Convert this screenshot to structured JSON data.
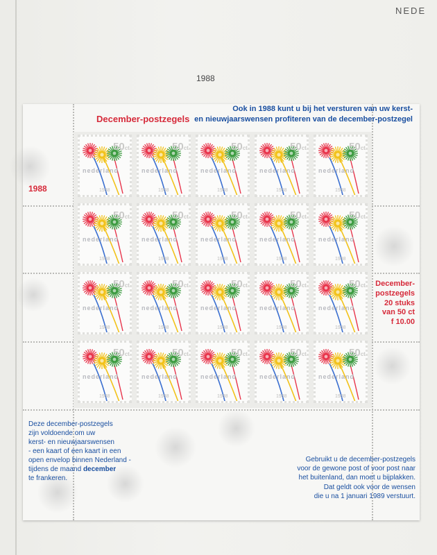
{
  "page": {
    "country_header": "NEDE",
    "year_header": "1988"
  },
  "sheet": {
    "title": "December-postzegels",
    "intro_line1": "Ook in 1988 kunt u bij het versturen van uw kerst-",
    "intro_line2": "en nieuwjaarswensen profiteren van de december-postzegel",
    "year_label": "1988",
    "info_line1": "December-",
    "info_line2": "postzegels",
    "info_line3": "20 stuks",
    "info_line4": "van 50 ct",
    "info_line5": "f 10.00",
    "left_line1": "Deze december-postzegels",
    "left_line2": "zijn voldoende om uw",
    "left_line3": "kerst- en nieuwjaarswensen",
    "left_line4": "- een kaart of een kaart in een",
    "left_line5": "open envelop binnen Nederland -",
    "left_line6_pre": "tijdens de maand ",
    "left_line6_bold": "december",
    "left_line7": "te frankeren.",
    "right_line1": "Gebruikt u de december-postzegels",
    "right_line2": "voor de gewone post of voor post naar",
    "right_line3": "het buitenland, dan moet u bijplakken.",
    "right_line4": "Dat geldt ook voor de wensen",
    "right_line5": "die u na 1 januari 1989 verstuurt."
  },
  "stamp": {
    "value": "50",
    "currency": "ct",
    "country": "nederland",
    "year": "1988",
    "rows": 4,
    "cols": 5,
    "colors": {
      "red": "#e8334a",
      "yellow": "#f2c21a",
      "green": "#3a9a3e",
      "blue": "#3b6fd0"
    }
  }
}
